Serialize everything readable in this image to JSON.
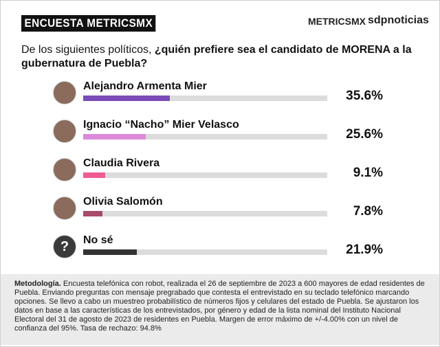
{
  "header": {
    "badge": "ENCUESTA METRICSMX",
    "logo_1": "METRICSMX",
    "logo_2": "sdpnoticias"
  },
  "chart_data": {
    "type": "bar",
    "orientation": "horizontal",
    "title_plain": "De los siguientes políticos, ",
    "title_bold": "¿quién prefiere sea el candidato de MORENA a la gubernatura de Puebla?",
    "categories": [
      "Alejandro Armenta Mier",
      "Ignacio “Nacho” Mier Velasco",
      "Claudia Rivera",
      "Olivia Salomón",
      "No sé"
    ],
    "values": [
      35.6,
      25.6,
      9.1,
      7.8,
      21.9
    ],
    "value_labels": [
      "35.6%",
      "25.6%",
      "9.1%",
      "7.8%",
      "21.9%"
    ],
    "colors": [
      "#7b4bb7",
      "#dc8ad9",
      "#ef5b93",
      "#a84a6c",
      "#333333"
    ],
    "track_color": "#dcdcdc",
    "unknown_symbol": "?",
    "xlim": [
      0,
      100
    ]
  },
  "methodology": {
    "label": "Metodología.",
    "text": "Encuesta telefónica con robot, realizada el 26 de septiembre de 2023 a 600 mayores de edad residentes de Puebla. Enviando preguntas con mensaje pregrabado que contesta el entrevistado en su teclado telefónico marcando opciones. Se llevo a cabo un muestreo probabilístico de números fijos y celulares del estado de Puebla. Se ajustaron los datos en base a las características de los entrevistados, por género y edad de la lista nominal del Instituto Nacional Electoral del 31 de agosto de 2023 de residentes en Puebla. Margen de error máximo de +/-4.00% con un nivel de confianza del 95%. Tasa de rechazo: 94.8%"
  }
}
